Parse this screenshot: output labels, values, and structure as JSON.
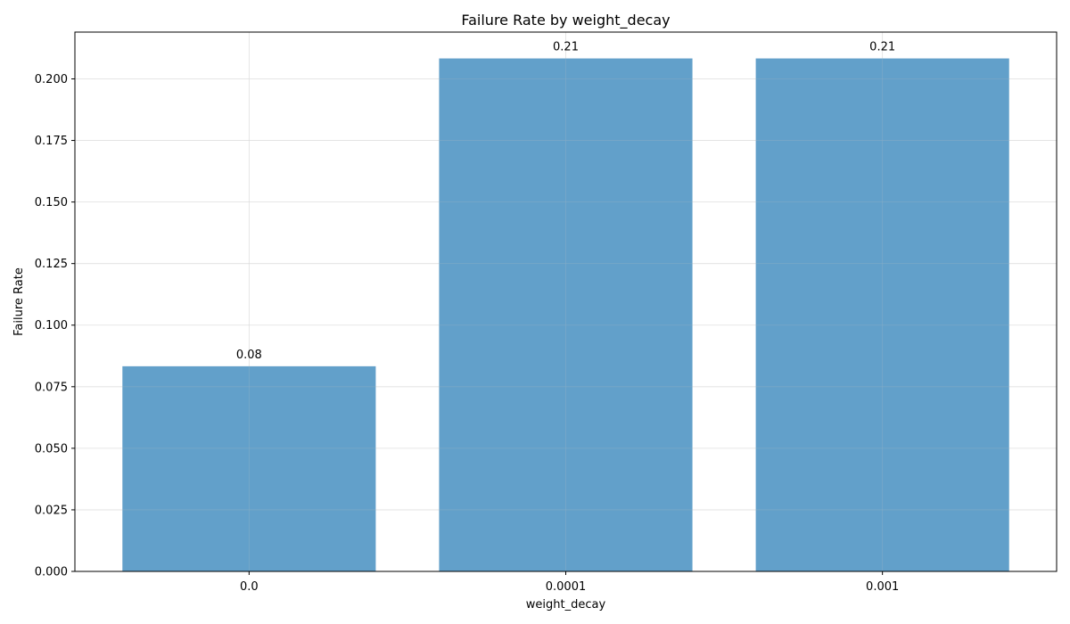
{
  "chart_data": {
    "type": "bar",
    "title": "Failure Rate by weight_decay",
    "xlabel": "weight_decay",
    "ylabel": "Failure Rate",
    "categories": [
      "0.0",
      "0.0001",
      "0.001"
    ],
    "values": [
      0.0833,
      0.2083,
      0.2083
    ],
    "data_labels": [
      "0.08",
      "0.21",
      "0.21"
    ],
    "ylim": [
      0,
      0.219
    ],
    "yticks": [
      0.0,
      0.025,
      0.05,
      0.075,
      0.1,
      0.125,
      0.15,
      0.175,
      0.2
    ],
    "ytick_labels": [
      "0.000",
      "0.025",
      "0.050",
      "0.075",
      "0.100",
      "0.125",
      "0.150",
      "0.175",
      "0.200"
    ],
    "grid": true,
    "bar_color": "#1f77b4"
  }
}
